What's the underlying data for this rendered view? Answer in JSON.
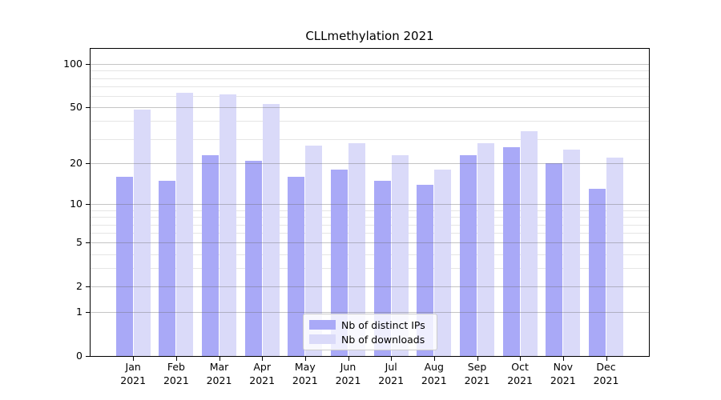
{
  "chart_data": {
    "type": "bar",
    "title": "CLLmethylation 2021",
    "categories": [
      "Jan",
      "Feb",
      "Mar",
      "Apr",
      "May",
      "Jun",
      "Jul",
      "Aug",
      "Sep",
      "Oct",
      "Nov",
      "Dec"
    ],
    "x_tick_year": "2021",
    "series": [
      {
        "name": "Nb of distinct IPs",
        "color": "#a9a9f7",
        "values": [
          16,
          15,
          23,
          21,
          16,
          18,
          15,
          14,
          23,
          26,
          20,
          13
        ]
      },
      {
        "name": "Nb of downloads",
        "color": "#dadaf9",
        "values": [
          48,
          63,
          62,
          53,
          27,
          28,
          23,
          18,
          28,
          34,
          25,
          22
        ]
      }
    ],
    "yscale": "log1p",
    "ylim": [
      0,
      128
    ],
    "y_major_ticks": [
      0,
      1,
      2,
      5,
      10,
      20,
      50,
      100
    ],
    "y_minor_gridlines": [
      3,
      4,
      6,
      7,
      8,
      9,
      30,
      40,
      60,
      70,
      80,
      90
    ],
    "grid": "on",
    "legend_position": "lower center"
  }
}
